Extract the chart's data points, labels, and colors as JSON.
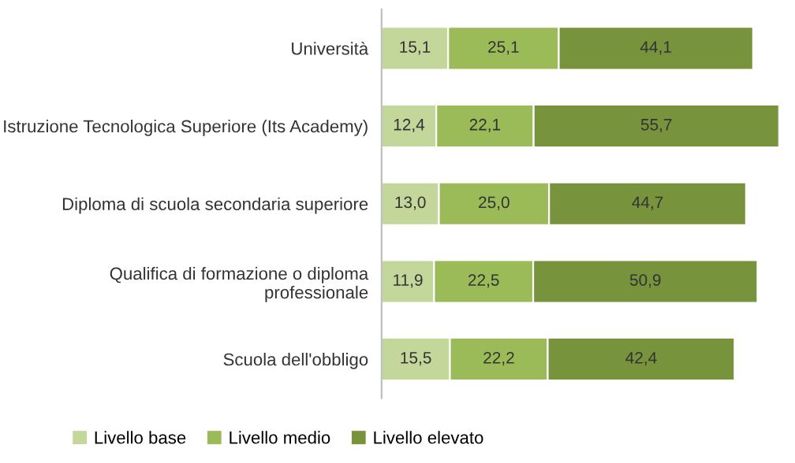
{
  "chart_data": {
    "type": "bar",
    "orientation": "horizontal",
    "stacked": true,
    "legend": "bottom",
    "grid": false,
    "categories": [
      "Università",
      "Istruzione Tecnologica Superiore (Its Academy)",
      "Diploma di scuola secondaria superiore",
      "Qualifica di formazione o diploma\nprofessionale",
      "Scuola dell'obbligo"
    ],
    "series": [
      {
        "name": "Livello base",
        "color": "#c4d79b",
        "values": [
          15.1,
          12.4,
          13.0,
          11.9,
          15.5
        ],
        "value_labels": [
          "15,1",
          "12,4",
          "13,0",
          "11,9",
          "15,5"
        ]
      },
      {
        "name": "Livello medio",
        "color": "#9bbb59",
        "values": [
          25.1,
          22.1,
          25.0,
          22.5,
          22.2
        ],
        "value_labels": [
          "25,1",
          "22,1",
          "25,0",
          "22,5",
          "22,2"
        ]
      },
      {
        "name": "Livello elevato",
        "color": "#77933c",
        "values": [
          44.1,
          55.7,
          44.7,
          50.9,
          42.4
        ],
        "value_labels": [
          "44,1",
          "55,7",
          "44,7",
          "50,9",
          "42,4"
        ]
      }
    ]
  }
}
